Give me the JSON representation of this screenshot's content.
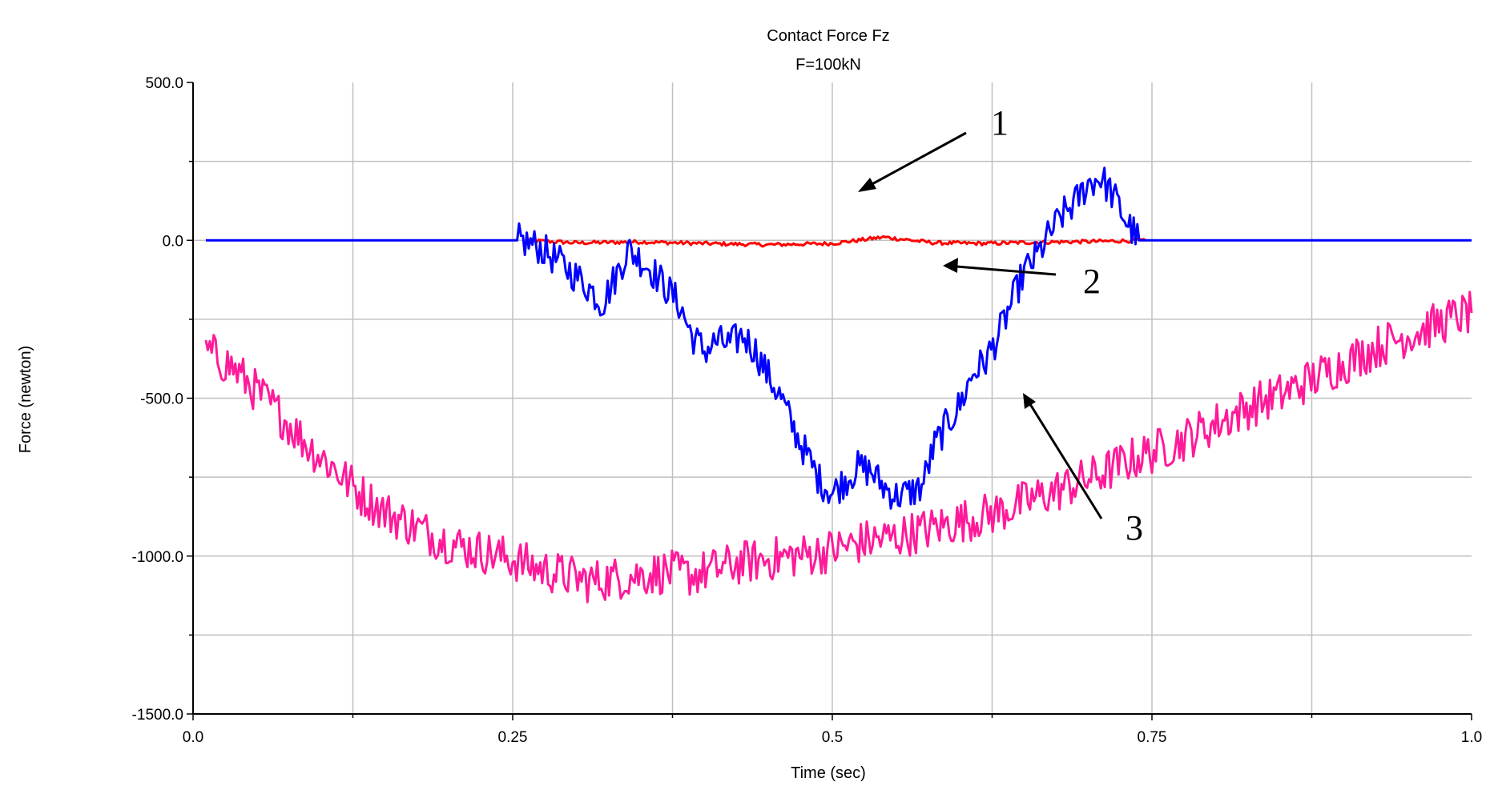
{
  "chart_data": {
    "type": "line",
    "title": "Contact Force Fz",
    "subtitle": "F=100kN",
    "xlabel": "Time (sec)",
    "ylabel": "Force (newton)",
    "xlim": [
      0.0,
      1.0
    ],
    "ylim": [
      -1500.0,
      500.0
    ],
    "x_ticks": [
      "0.0",
      "0.25",
      "0.5",
      "0.75",
      "1.0"
    ],
    "y_ticks": [
      "500.0",
      "0.0",
      "-500.0",
      "-1000.0",
      "-1500.0"
    ],
    "grid": true,
    "legend": "none",
    "annotations": [
      "1",
      "2",
      "3"
    ],
    "series": [
      {
        "color": "#ff0000",
        "x": [
          0.26,
          0.3,
          0.35,
          0.4,
          0.45,
          0.5,
          0.54,
          0.58,
          0.62,
          0.66,
          0.7,
          0.745
        ],
        "y": [
          0,
          -8,
          -5,
          -10,
          -14,
          -10,
          10,
          -8,
          -10,
          -6,
          -4,
          0
        ]
      },
      {
        "color": "#0000ff",
        "x": [
          0.01,
          0.255,
          0.27,
          0.29,
          0.31,
          0.32,
          0.33,
          0.34,
          0.35,
          0.36,
          0.37,
          0.38,
          0.39,
          0.4,
          0.41,
          0.42,
          0.43,
          0.44,
          0.45,
          0.46,
          0.47,
          0.48,
          0.49,
          0.5,
          0.51,
          0.52,
          0.53,
          0.54,
          0.55,
          0.56,
          0.57,
          0.58,
          0.59,
          0.6,
          0.61,
          0.62,
          0.63,
          0.64,
          0.65,
          0.66,
          0.67,
          0.68,
          0.69,
          0.7,
          0.71,
          0.72,
          0.73,
          0.74,
          0.75,
          1.0
        ],
        "y": [
          0,
          0,
          -20,
          -80,
          -150,
          -200,
          -120,
          -30,
          -60,
          -100,
          -150,
          -200,
          -300,
          -350,
          -320,
          -330,
          -300,
          -350,
          -430,
          -500,
          -600,
          -680,
          -760,
          -800,
          -760,
          -720,
          -730,
          -780,
          -810,
          -800,
          -780,
          -650,
          -580,
          -520,
          -420,
          -380,
          -300,
          -200,
          -100,
          -50,
          20,
          80,
          120,
          180,
          200,
          140,
          60,
          0,
          0,
          0
        ]
      },
      {
        "color": "#ff1a9a",
        "x": [
          0.01,
          0.03,
          0.05,
          0.07,
          0.09,
          0.11,
          0.13,
          0.15,
          0.17,
          0.19,
          0.21,
          0.23,
          0.25,
          0.27,
          0.29,
          0.31,
          0.33,
          0.35,
          0.37,
          0.39,
          0.41,
          0.43,
          0.45,
          0.47,
          0.49,
          0.51,
          0.53,
          0.55,
          0.57,
          0.59,
          0.61,
          0.63,
          0.65,
          0.67,
          0.69,
          0.71,
          0.73,
          0.75,
          0.77,
          0.79,
          0.81,
          0.83,
          0.85,
          0.87,
          0.89,
          0.91,
          0.93,
          0.95,
          0.97,
          0.99,
          1.0
        ],
        "y": [
          -350,
          -400,
          -480,
          -560,
          -650,
          -720,
          -800,
          -860,
          -900,
          -940,
          -970,
          -990,
          -1010,
          -1040,
          -1060,
          -1080,
          -1070,
          -1060,
          -1050,
          -1060,
          -1040,
          -1020,
          -1010,
          -1000,
          -990,
          -970,
          -950,
          -940,
          -920,
          -900,
          -880,
          -860,
          -830,
          -800,
          -770,
          -740,
          -700,
          -670,
          -640,
          -600,
          -560,
          -520,
          -490,
          -450,
          -410,
          -370,
          -330,
          -300,
          -270,
          -240,
          -230
        ]
      }
    ]
  }
}
